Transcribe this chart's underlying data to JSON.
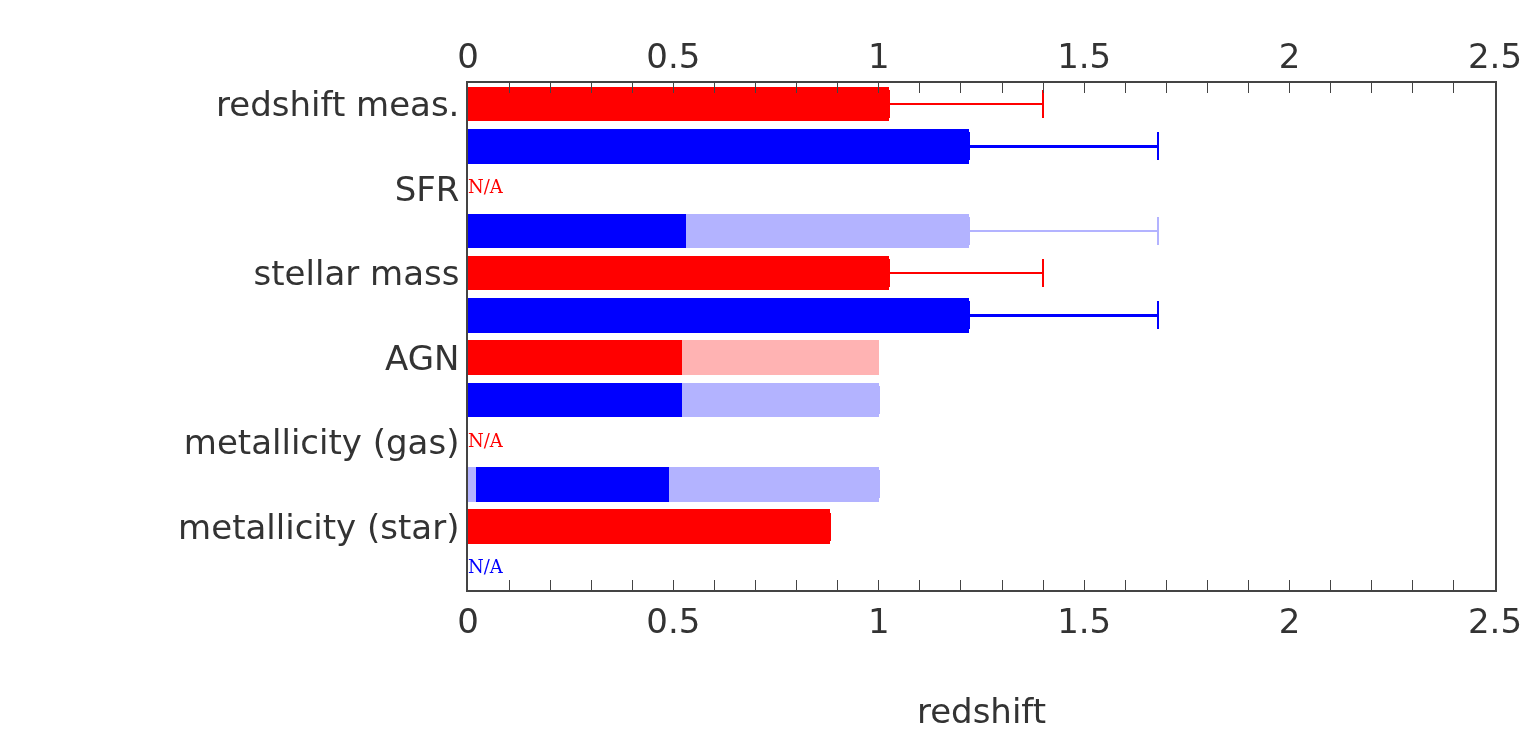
{
  "chart_data": {
    "type": "bar",
    "orientation": "horizontal",
    "stacked": true,
    "xlabel": "redshift",
    "categories": [
      "redshift meas.",
      null,
      "SFR",
      null,
      "stellar mass",
      null,
      "AGN",
      null,
      "metallicity (gas)",
      null,
      "metallicity (star)",
      null
    ],
    "series": [
      {
        "color": "#ff0000",
        "values": [
          1.025,
          null,
          null,
          null,
          1.025,
          null,
          0.52,
          null,
          null,
          null,
          0.88,
          null
        ],
        "errors": [
          [
            1.025,
            1.4
          ],
          null,
          null,
          null,
          [
            1.025,
            1.4
          ],
          null,
          null,
          null,
          null,
          null,
          null,
          null
        ],
        "value_labels": [
          null,
          null,
          "N/A",
          null,
          null,
          null,
          null,
          null,
          "N/A",
          null,
          null,
          null
        ]
      },
      {
        "color": "#ffb3b3",
        "values": [
          null,
          null,
          null,
          null,
          null,
          null,
          0.48,
          null,
          null,
          null,
          null,
          null
        ]
      },
      {
        "color": "#b3b3ff",
        "values": [
          null,
          null,
          null,
          null,
          null,
          null,
          null,
          null,
          null,
          0.02,
          null,
          null
        ]
      },
      {
        "color": "#0000ff",
        "values": [
          null,
          1.22,
          null,
          0.53,
          null,
          1.22,
          null,
          0.52,
          null,
          0.47,
          null,
          null
        ],
        "errors": [
          null,
          [
            1.22,
            1.68
          ],
          null,
          null,
          null,
          [
            1.22,
            1.68
          ],
          null,
          null,
          null,
          null,
          null,
          null
        ],
        "value_labels": [
          null,
          null,
          null,
          null,
          null,
          null,
          null,
          null,
          null,
          null,
          null,
          "N/A"
        ]
      },
      {
        "color": "#b3b3ff",
        "values": [
          null,
          null,
          null,
          0.69,
          null,
          null,
          null,
          0.48,
          null,
          0.51,
          null,
          null
        ],
        "errors": [
          null,
          null,
          null,
          [
            1.22,
            1.68
          ],
          null,
          null,
          null,
          null,
          null,
          null,
          null,
          null
        ]
      }
    ],
    "xlim": [
      0,
      2.5
    ],
    "xticks": [
      0,
      {
        "value": 0.1,
        "label": null
      },
      {
        "value": 0.2,
        "label": null
      },
      {
        "value": 0.3,
        "label": null
      },
      {
        "value": 0.4,
        "label": null
      },
      0.5,
      {
        "value": 0.6,
        "label": null
      },
      {
        "value": 0.7,
        "label": null
      },
      {
        "value": 0.8,
        "label": null
      },
      {
        "value": 0.9,
        "label": null
      },
      1,
      {
        "value": 1.1,
        "label": null
      },
      {
        "value": 1.2,
        "label": null
      },
      {
        "value": 1.3,
        "label": null
      },
      {
        "value": 1.4,
        "label": null
      },
      1.5,
      {
        "value": 1.6,
        "label": null
      },
      {
        "value": 1.7,
        "label": null
      },
      {
        "value": 1.8,
        "label": null
      },
      {
        "value": 1.9,
        "label": null
      },
      2,
      {
        "value": 2.1,
        "label": null
      },
      {
        "value": 2.2,
        "label": null
      },
      {
        "value": 2.3,
        "label": null
      },
      {
        "value": 2.4,
        "label": null
      },
      2.5
    ],
    "x2lim": [
      0,
      2.5
    ],
    "x2ticks": [
      0,
      {
        "value": 0.1,
        "label": null
      },
      {
        "value": 0.2,
        "label": null
      },
      {
        "value": 0.3,
        "label": null
      },
      {
        "value": 0.4,
        "label": null
      },
      0.5,
      {
        "value": 0.6,
        "label": null
      },
      {
        "value": 0.7,
        "label": null
      },
      {
        "value": 0.8,
        "label": null
      },
      {
        "value": 0.9,
        "label": null
      },
      1,
      {
        "value": 1.1,
        "label": null
      },
      {
        "value": 1.2,
        "label": null
      },
      {
        "value": 1.3,
        "label": null
      },
      {
        "value": 1.4,
        "label": null
      },
      1.5,
      {
        "value": 1.6,
        "label": null
      },
      {
        "value": 1.7,
        "label": null
      },
      {
        "value": 1.8,
        "label": null
      },
      {
        "value": 1.9,
        "label": null
      },
      2,
      {
        "value": 2.1,
        "label": null
      },
      {
        "value": 2.2,
        "label": null
      },
      {
        "value": 2.3,
        "label": null
      },
      {
        "value": 2.4,
        "label": null
      },
      2.5
    ],
    "grid": false
  }
}
